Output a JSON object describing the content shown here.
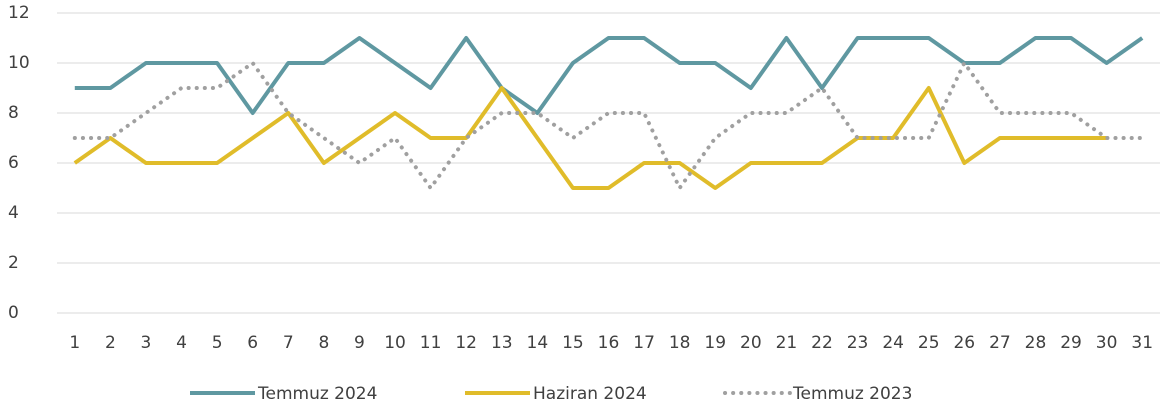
{
  "chart_data": {
    "type": "line",
    "categories": [
      "1",
      "2",
      "3",
      "4",
      "5",
      "6",
      "7",
      "8",
      "9",
      "10",
      "11",
      "12",
      "13",
      "14",
      "15",
      "16",
      "17",
      "18",
      "19",
      "20",
      "21",
      "22",
      "23",
      "24",
      "25",
      "26",
      "27",
      "28",
      "29",
      "30",
      "31"
    ],
    "series": [
      {
        "name": "Temmuz 2024",
        "color": "#5f98a1",
        "style": "solid",
        "values": [
          9,
          9,
          10,
          10,
          10,
          8,
          10,
          10,
          11,
          10,
          9,
          11,
          9,
          8,
          10,
          11,
          11,
          10,
          10,
          9,
          11,
          9,
          11,
          11,
          11,
          10,
          10,
          11,
          11,
          10,
          11
        ]
      },
      {
        "name": "Haziran 2024",
        "color": "#e0bc2a",
        "style": "solid",
        "values": [
          6,
          7,
          6,
          6,
          6,
          7,
          8,
          6,
          7,
          8,
          7,
          7,
          9,
          7,
          5,
          5,
          6,
          6,
          5,
          6,
          6,
          6,
          7,
          7,
          9,
          6,
          7,
          7,
          7,
          7,
          null
        ]
      },
      {
        "name": "Temmuz 2023",
        "color": "#a0a0a0",
        "style": "dotted",
        "values": [
          7,
          7,
          8,
          9,
          9,
          10,
          8,
          7,
          6,
          7,
          5,
          7,
          8,
          8,
          7,
          8,
          8,
          5,
          7,
          8,
          8,
          9,
          7,
          7,
          7,
          10,
          8,
          8,
          8,
          7,
          7
        ]
      }
    ],
    "ylim": [
      0,
      12
    ],
    "yticks": [
      0,
      2,
      4,
      6,
      8,
      10,
      12
    ],
    "grid": true,
    "legend": "bottom"
  }
}
